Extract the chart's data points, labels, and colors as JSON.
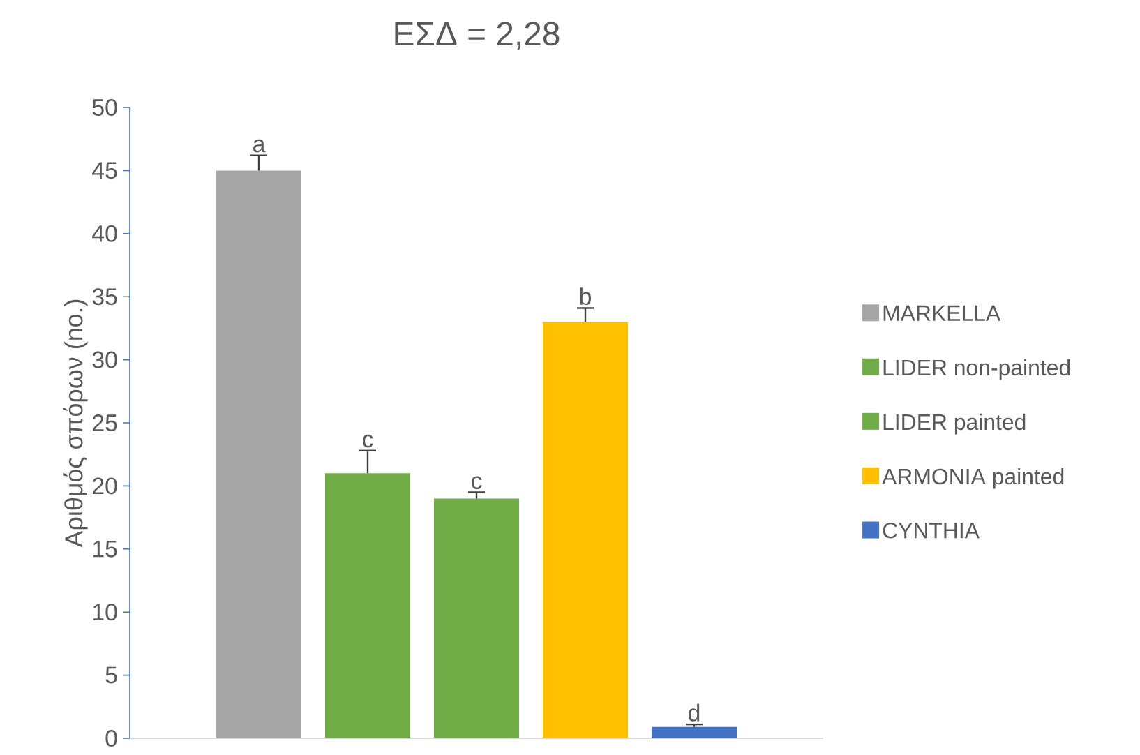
{
  "chart_data": {
    "type": "bar",
    "title": "ΕΣΔ = 2,28",
    "ylabel": "Αριθμός σπόρων (no.)",
    "categories": [
      null
    ],
    "series": [
      {
        "name": "MARKELLA",
        "color": "#a5a5a5",
        "values": [
          45
        ],
        "errors": [
          1.2
        ]
      },
      {
        "name": "LIDER non-painted",
        "color": "#70ad47",
        "values": [
          21
        ],
        "errors": [
          1.8
        ]
      },
      {
        "name": "LIDER painted",
        "color": "#70ad47",
        "values": [
          19
        ],
        "errors": [
          0.5
        ]
      },
      {
        "name": "ARMONIA painted",
        "color": "#ffc000",
        "values": [
          33
        ],
        "errors": [
          1.1
        ]
      },
      {
        "name": "CYNTHIA",
        "color": "#4472c4",
        "values": [
          0.9
        ],
        "errors": [
          0.2
        ]
      }
    ],
    "annotations": [
      "a",
      "c",
      "c",
      "b",
      "d"
    ],
    "ylim": [
      0,
      50
    ],
    "yticks": [
      0,
      5,
      10,
      15,
      20,
      25,
      30,
      35,
      40,
      45,
      50
    ],
    "grid": false,
    "legend": "right"
  }
}
